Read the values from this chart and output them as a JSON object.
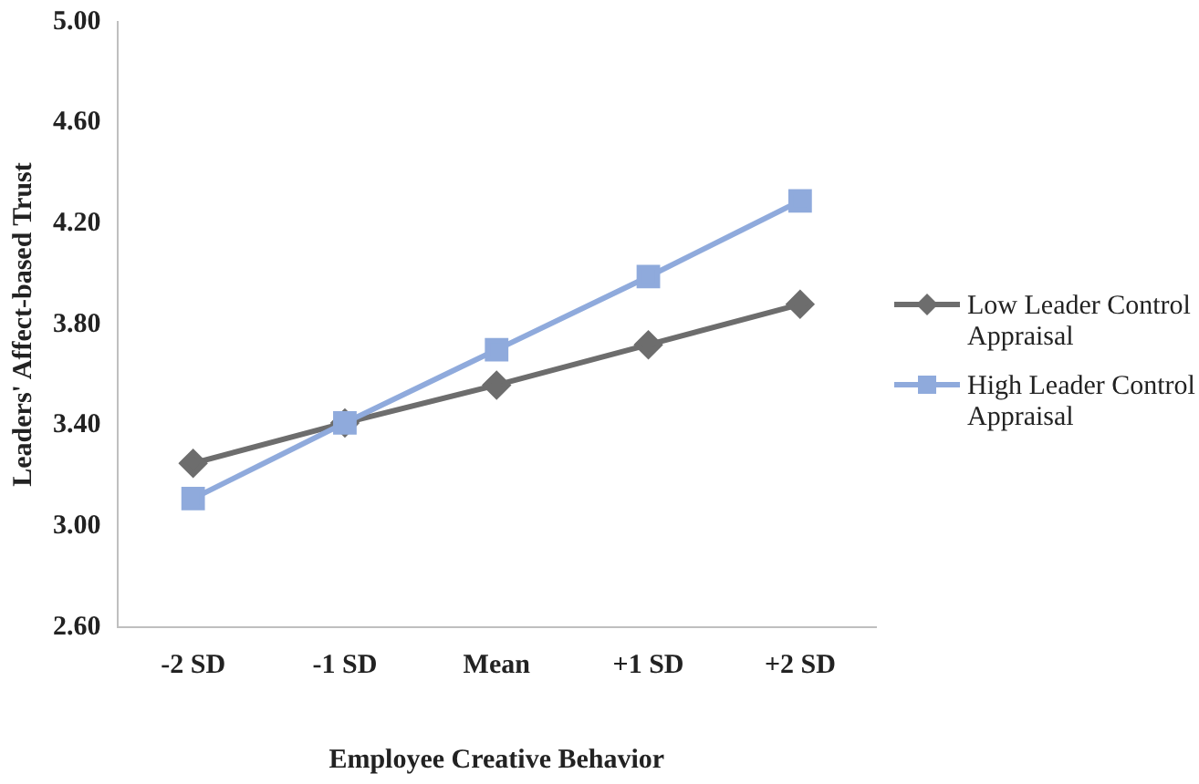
{
  "chart_data": {
    "type": "line",
    "xlabel": "Employee Creative Behavior",
    "ylabel": "Leaders' Affect-based Trust",
    "categories": [
      "-2 SD",
      "-1 SD",
      "Mean",
      "+1 SD",
      "+2 SD"
    ],
    "ylim": [
      2.6,
      5.0
    ],
    "yticks": [
      {
        "value": 2.6,
        "label": "2.60"
      },
      {
        "value": 3.0,
        "label": "3.00"
      },
      {
        "value": 3.4,
        "label": "3.40"
      },
      {
        "value": 3.8,
        "label": "3.80"
      },
      {
        "value": 4.2,
        "label": "4.20"
      },
      {
        "value": 4.6,
        "label": "4.60"
      },
      {
        "value": 5.0,
        "label": "5.00"
      }
    ],
    "grid": false,
    "legend": "right",
    "series": [
      {
        "name": "Low Leader Control Appraisal",
        "color": "#6d6d6d",
        "marker": "diamond",
        "values": [
          3.25,
          3.41,
          3.56,
          3.72,
          3.88
        ]
      },
      {
        "name": "High Leader Control Appraisal",
        "color": "#8faadc",
        "marker": "square",
        "values": [
          3.11,
          3.41,
          3.7,
          3.99,
          4.29
        ]
      }
    ]
  }
}
